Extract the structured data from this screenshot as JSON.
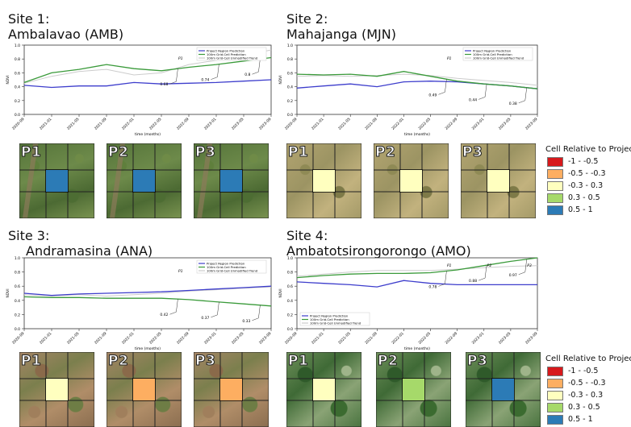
{
  "sites": [
    {
      "id": "amb",
      "title_line1": "Site 1:",
      "title_line2": "Ambalavao (AMB)"
    },
    {
      "id": "mjn",
      "title_line1": "Site 2:",
      "title_line2": "Mahajanga (MJN)"
    },
    {
      "id": "ana",
      "title_line1": "Site 3:",
      "title_line2": "Andramasina (ANA)"
    },
    {
      "id": "amo",
      "title_line1": "Site 4:",
      "title_line2": "Ambatotsirongorongo (AMO)"
    }
  ],
  "tile_labels": [
    "P1",
    "P2",
    "P3"
  ],
  "legend": {
    "title": "Cell Relative to Project",
    "items": [
      {
        "label": "-1 - -0.5",
        "color": "#d7191c"
      },
      {
        "label": "-0.5 - -0.3",
        "color": "#fdae61"
      },
      {
        "label": "-0.3 - 0.3",
        "color": "#ffffbf"
      },
      {
        "label": "0.3 - 0.5",
        "color": "#a6d96a"
      },
      {
        "label": "0.5 - 1",
        "color": "#2c7bb6"
      }
    ]
  },
  "tiles": {
    "amb": [
      "#2c7bb6",
      "#2c7bb6",
      "#2c7bb6"
    ],
    "mjn": [
      "#ffffbf",
      "#ffffbf",
      "#ffffbf"
    ],
    "ana": [
      "#ffffbf",
      "#fdae61",
      "#fdae61"
    ],
    "amo": [
      "#ffffbf",
      "#a6d96a",
      "#2c7bb6"
    ]
  },
  "chart_data": [
    {
      "type": "line",
      "site": "amb",
      "xlabel": "time (months)",
      "ylabel": "NDVI",
      "ylim": [
        0,
        1.0
      ],
      "yticks": [
        "0.0",
        "0.2",
        "0.4",
        "0.6",
        "0.8",
        "1.0"
      ],
      "x": [
        "2020-09",
        "2021-01",
        "2021-05",
        "2021-09",
        "2022-01",
        "2022-05",
        "2022-09",
        "2023-01",
        "2023-05",
        "2023-09"
      ],
      "legend_position": "top-right",
      "series": [
        {
          "name": "Project Region Prediction",
          "color": "#3d3dcc",
          "values": [
            0.42,
            0.39,
            0.41,
            0.41,
            0.46,
            0.44,
            0.45,
            0.46,
            0.48,
            0.5
          ]
        },
        {
          "name": "100m Grid-Cell Prediction",
          "color": "#3a9a3a",
          "values": [
            0.46,
            0.6,
            0.65,
            0.72,
            0.66,
            0.63,
            0.68,
            0.72,
            0.77,
            0.82
          ]
        },
        {
          "name": "100m Grid-Cell Unmodified Trend",
          "color": "#cccccc",
          "values": [
            0.45,
            0.55,
            0.62,
            0.65,
            0.57,
            0.6,
            0.72,
            0.78,
            0.85,
            0.93
          ]
        }
      ],
      "period_labels": [
        "P1",
        "P2",
        "P3"
      ],
      "annotations": [
        "0.68",
        "0.74",
        "0.8"
      ]
    },
    {
      "type": "line",
      "site": "mjn",
      "xlabel": "time (months)",
      "ylabel": "NDVI",
      "ylim": [
        0,
        1.0
      ],
      "yticks": [
        "0.0",
        "0.2",
        "0.4",
        "0.6",
        "0.8",
        "1.0"
      ],
      "x": [
        "2020-09",
        "2021-01",
        "2021-05",
        "2021-09",
        "2022-01",
        "2022-05",
        "2022-09",
        "2023-01",
        "2023-05",
        "2023-09"
      ],
      "legend_position": "top-right",
      "series": [
        {
          "name": "Project Region Prediction",
          "color": "#3d3dcc",
          "values": [
            0.38,
            0.41,
            0.44,
            0.4,
            0.47,
            0.48,
            0.47,
            0.44,
            0.41,
            0.37
          ]
        },
        {
          "name": "100m Grid-Cell Prediction",
          "color": "#3a9a3a",
          "values": [
            0.58,
            0.57,
            0.58,
            0.55,
            0.62,
            0.55,
            0.48,
            0.44,
            0.41,
            0.37
          ]
        },
        {
          "name": "100m Grid-Cell Unmodified Trend",
          "color": "#cccccc",
          "values": [
            0.55,
            0.56,
            0.55,
            0.56,
            0.58,
            0.56,
            0.52,
            0.49,
            0.46,
            0.42
          ]
        }
      ],
      "period_labels": [
        "P1",
        "P2",
        "P3"
      ],
      "annotations": [
        "0.49",
        "0.44",
        "0.38"
      ]
    },
    {
      "type": "line",
      "site": "ana",
      "xlabel": "time (months)",
      "ylabel": "NDVI",
      "ylim": [
        0,
        1.0
      ],
      "yticks": [
        "0.0",
        "0.2",
        "0.4",
        "0.6",
        "0.8",
        "1.0"
      ],
      "x": [
        "2020-09",
        "2021-01",
        "2021-05",
        "2021-09",
        "2022-01",
        "2022-05",
        "2022-09",
        "2023-01",
        "2023-05",
        "2023-09"
      ],
      "legend_position": "top-right",
      "series": [
        {
          "name": "Project Region Prediction",
          "color": "#3d3dcc",
          "values": [
            0.5,
            0.47,
            0.49,
            0.5,
            0.51,
            0.52,
            0.54,
            0.56,
            0.58,
            0.6
          ]
        },
        {
          "name": "100m Grid-Cell Prediction",
          "color": "#3a9a3a",
          "values": [
            0.45,
            0.44,
            0.44,
            0.43,
            0.43,
            0.43,
            0.41,
            0.38,
            0.35,
            0.32
          ]
        },
        {
          "name": "100m Grid-Cell Unmodified Trend",
          "color": "#cccccc",
          "values": [
            0.48,
            0.46,
            0.48,
            0.46,
            0.48,
            0.5,
            0.53,
            0.55,
            0.57,
            0.59
          ]
        }
      ],
      "period_labels": [
        "P1",
        "P2",
        "P3"
      ],
      "annotations": [
        "0.42",
        "0.37",
        "0.33"
      ]
    },
    {
      "type": "line",
      "site": "amo",
      "xlabel": "time (months)",
      "ylabel": "NDVI",
      "ylim": [
        0,
        1.0
      ],
      "yticks": [
        "0.0",
        "0.2",
        "0.4",
        "0.6",
        "0.8",
        "1.0"
      ],
      "x": [
        "2020-09",
        "2021-01",
        "2021-05",
        "2021-09",
        "2022-01",
        "2022-05",
        "2022-09",
        "2023-01",
        "2023-05",
        "2023-09"
      ],
      "legend_position": "bottom-left",
      "series": [
        {
          "name": "Project Region Prediction",
          "color": "#3d3dcc",
          "values": [
            0.66,
            0.64,
            0.62,
            0.59,
            0.68,
            0.64,
            0.62,
            0.62,
            0.62,
            0.62
          ]
        },
        {
          "name": "100m Grid-Cell Prediction",
          "color": "#3a9a3a",
          "values": [
            0.72,
            0.75,
            0.77,
            0.78,
            0.78,
            0.79,
            0.83,
            0.89,
            0.95,
            1.0
          ]
        },
        {
          "name": "100m Grid-Cell Unmodified Trend",
          "color": "#cccccc",
          "values": [
            0.74,
            0.77,
            0.8,
            0.82,
            0.82,
            0.82,
            0.84,
            0.86,
            0.88,
            0.89
          ]
        }
      ],
      "period_labels": [
        "P1",
        "P2",
        "P3"
      ],
      "annotations": [
        "0.78",
        "0.88",
        "0.97"
      ]
    }
  ]
}
